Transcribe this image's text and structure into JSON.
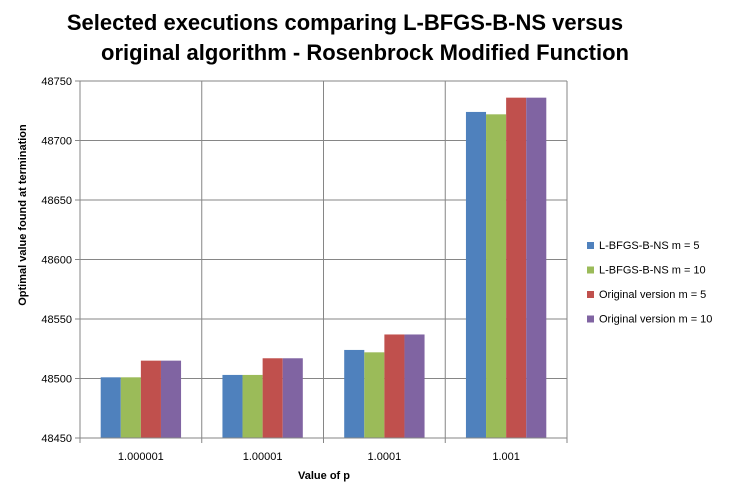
{
  "chart_data": {
    "type": "bar",
    "title": [
      "Selected executions comparing L-BFGS-B-NS  versus",
      "original algorithm - Rosenbrock Modified Function"
    ],
    "xlabel": "Value of p",
    "ylabel": "Optimal value found at termination",
    "categories": [
      "1.000001",
      "1.00001",
      "1.0001",
      "1.001"
    ],
    "ylim": [
      48450,
      48750
    ],
    "yticks": [
      48450,
      48500,
      48550,
      48600,
      48650,
      48700,
      48750
    ],
    "grid": true,
    "legend_position": "right",
    "series": [
      {
        "name": "L-BFGS-B-NS m = 5",
        "color": "#4F81BD",
        "values": [
          48501,
          48503,
          48524,
          48724
        ]
      },
      {
        "name": "L-BFGS-B-NS m = 10",
        "color": "#9BBB59",
        "values": [
          48501,
          48503,
          48522,
          48722
        ]
      },
      {
        "name": "Original version m = 5",
        "color": "#C0504D",
        "values": [
          48515,
          48517,
          48537,
          48736
        ]
      },
      {
        "name": "Original version m = 10",
        "color": "#8064A2",
        "values": [
          48515,
          48517,
          48537,
          48736
        ]
      }
    ]
  }
}
